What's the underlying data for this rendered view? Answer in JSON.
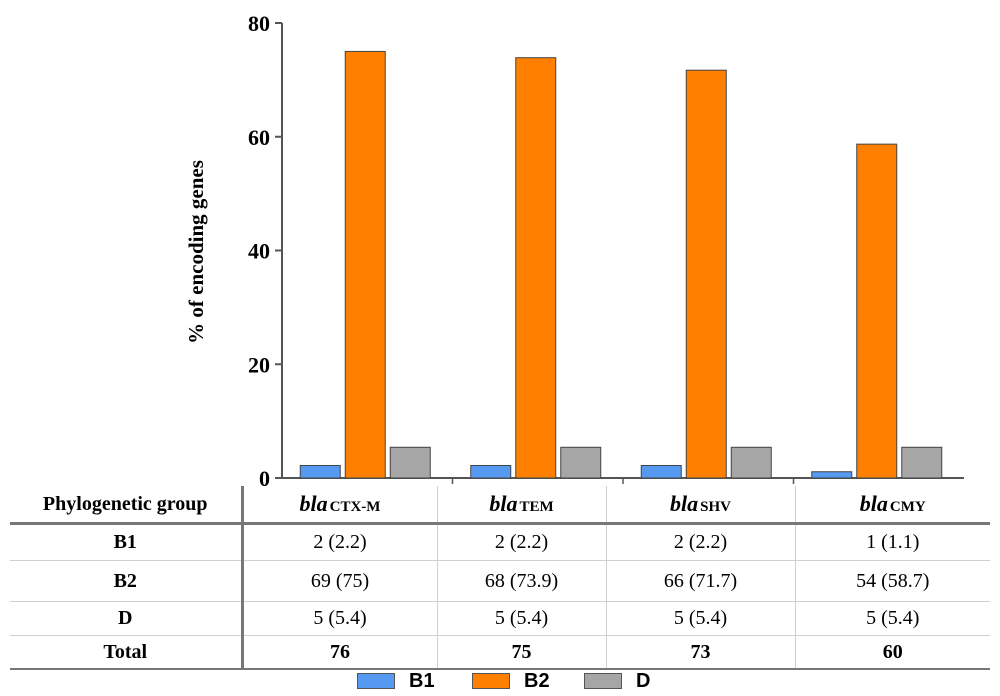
{
  "chart_data": {
    "type": "bar",
    "ylabel": "% of encoding genes",
    "ylim": [
      0,
      80
    ],
    "yticks": [
      0,
      20,
      40,
      60,
      80
    ],
    "categories": [
      {
        "italic": "bla",
        "sub": "CTX-M"
      },
      {
        "italic": "bla",
        "sub": "TEM"
      },
      {
        "italic": "bla",
        "sub": "SHV"
      },
      {
        "italic": "bla",
        "sub": "CMY"
      }
    ],
    "series": [
      {
        "name": "B1",
        "color": "#5599f0",
        "values": [
          2.2,
          2.2,
          2.2,
          1.1
        ]
      },
      {
        "name": "B2",
        "color": "#ff8000",
        "values": [
          75,
          73.9,
          71.7,
          58.7
        ]
      },
      {
        "name": "D",
        "color": "#a6a6a6",
        "values": [
          5.4,
          5.4,
          5.4,
          5.4
        ]
      }
    ],
    "legend_position": "bottom"
  },
  "table": {
    "header_label": "Phylogenetic group",
    "rows": [
      {
        "label": "B1",
        "cells": [
          "2 (2.2)",
          "2 (2.2)",
          "2 (2.2)",
          "1 (1.1)"
        ]
      },
      {
        "label": "B2",
        "cells": [
          "69 (75)",
          "68 (73.9)",
          "66 (71.7)",
          "54 (58.7)"
        ]
      },
      {
        "label": "D",
        "cells": [
          "5 (5.4)",
          "5 (5.4)",
          "5 (5.4)",
          "5 (5.4)"
        ]
      },
      {
        "label": "Total",
        "cells": [
          "76",
          "75",
          "73",
          "60"
        ]
      }
    ]
  }
}
